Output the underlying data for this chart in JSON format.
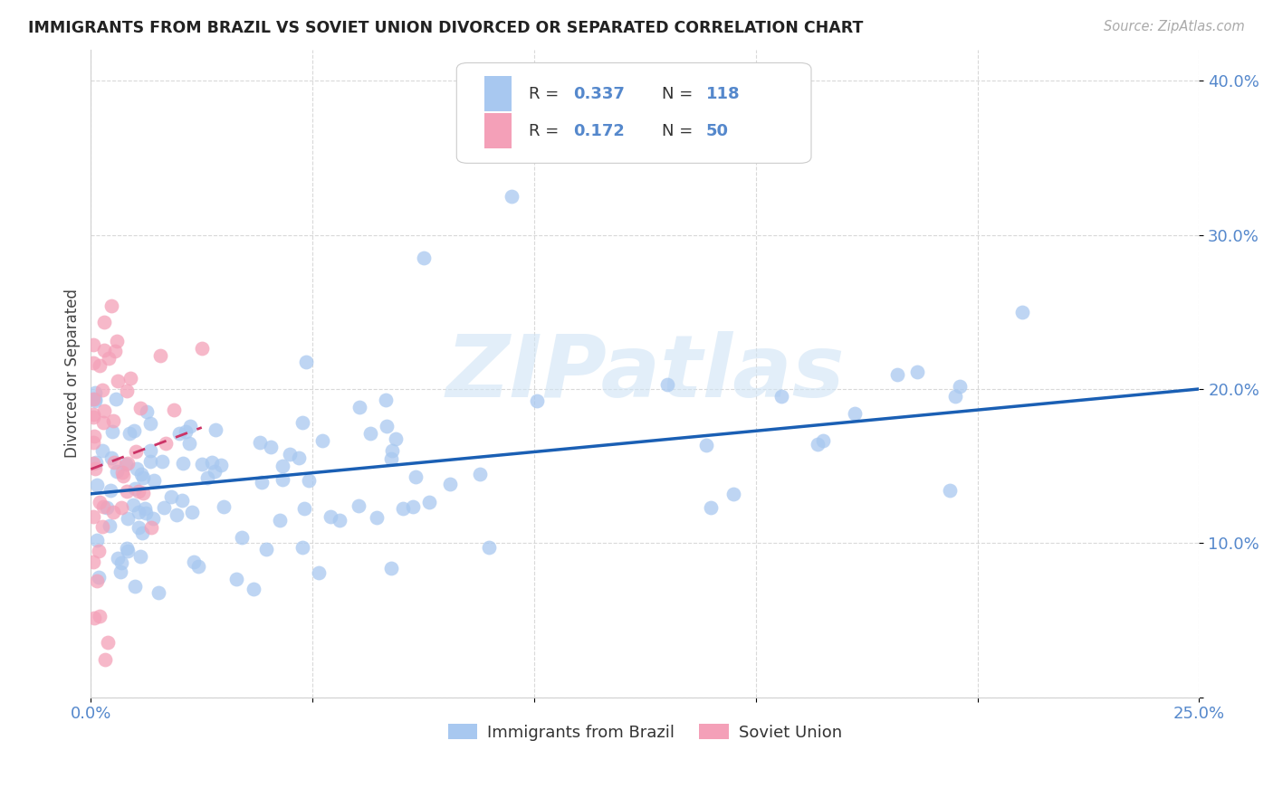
{
  "title": "IMMIGRANTS FROM BRAZIL VS SOVIET UNION DIVORCED OR SEPARATED CORRELATION CHART",
  "source": "Source: ZipAtlas.com",
  "ylabel": "Divorced or Separated",
  "xlim": [
    0.0,
    0.25
  ],
  "ylim": [
    0.0,
    0.42
  ],
  "brazil_color": "#a8c8f0",
  "soviet_color": "#f4a0b8",
  "brazil_line_color": "#1a5fb4",
  "soviet_line_color": "#cc3366",
  "legend_brazil_label": "Immigrants from Brazil",
  "legend_soviet_label": "Soviet Union",
  "brazil_R": 0.337,
  "brazil_N": 118,
  "soviet_R": 0.172,
  "soviet_N": 50,
  "watermark": "ZIPatlas",
  "brazil_line_x": [
    0.0,
    0.25
  ],
  "brazil_line_y": [
    0.132,
    0.2
  ],
  "soviet_line_x": [
    0.0,
    0.025
  ],
  "soviet_line_y": [
    0.148,
    0.175
  ]
}
